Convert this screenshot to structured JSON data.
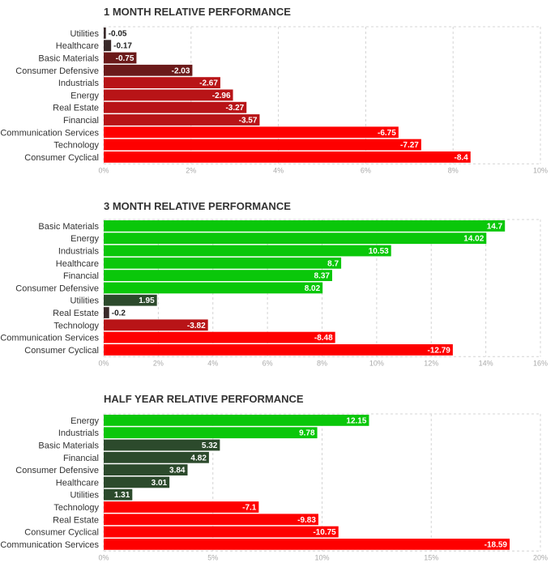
{
  "colors": {
    "neg_strong": "#fe0000",
    "neg_mid": "#b81417",
    "neg_weak": "#6b1a1a",
    "neg_faint": "#3a2a2a",
    "pos_strong": "#0ac70a",
    "pos_mid": "#1f7a1f",
    "pos_weak": "#2c4a2c"
  },
  "chart_data": [
    {
      "type": "bar",
      "orientation": "horizontal",
      "title": "1 MONTH RELATIVE PERFORMANCE",
      "categories": [
        "Utilities",
        "Healthcare",
        "Basic Materials",
        "Consumer Defensive",
        "Industrials",
        "Energy",
        "Real Estate",
        "Financial",
        "Communication Services",
        "Technology",
        "Consumer Cyclical"
      ],
      "values": [
        -0.05,
        -0.17,
        -0.75,
        -2.03,
        -2.67,
        -2.96,
        -3.27,
        -3.57,
        -6.75,
        -7.27,
        -8.4
      ],
      "value_labels": [
        "-0.05",
        "-0.17",
        "-0.75",
        "-2.03",
        "-2.67",
        "-2.96",
        "-3.27",
        "-3.57",
        "-6.75",
        "-7.27",
        "-8.4"
      ],
      "xlim": [
        0,
        10
      ],
      "xticks": [
        "0%",
        "2%",
        "4%",
        "6%",
        "8%",
        "10%"
      ],
      "grid": true,
      "bar_magnitude": "absolute value"
    },
    {
      "type": "bar",
      "orientation": "horizontal",
      "title": "3 MONTH RELATIVE PERFORMANCE",
      "categories": [
        "Basic Materials",
        "Energy",
        "Industrials",
        "Healthcare",
        "Financial",
        "Consumer Defensive",
        "Utilities",
        "Real Estate",
        "Technology",
        "Communication Services",
        "Consumer Cyclical"
      ],
      "values": [
        14.7,
        14.02,
        10.53,
        8.7,
        8.37,
        8.02,
        1.95,
        -0.2,
        -3.82,
        -8.48,
        -12.79
      ],
      "value_labels": [
        "14.7",
        "14.02",
        "10.53",
        "8.7",
        "8.37",
        "8.02",
        "1.95",
        "-0.2",
        "-3.82",
        "-8.48",
        "-12.79"
      ],
      "xlim": [
        0,
        16
      ],
      "xticks": [
        "0%",
        "2%",
        "4%",
        "6%",
        "8%",
        "10%",
        "12%",
        "14%",
        "16%"
      ],
      "grid": true,
      "bar_magnitude": "absolute value"
    },
    {
      "type": "bar",
      "orientation": "horizontal",
      "title": "HALF YEAR RELATIVE PERFORMANCE",
      "categories": [
        "Energy",
        "Industrials",
        "Basic Materials",
        "Financial",
        "Consumer Defensive",
        "Healthcare",
        "Utilities",
        "Technology",
        "Real Estate",
        "Consumer Cyclical",
        "Communication Services"
      ],
      "values": [
        12.15,
        9.78,
        5.32,
        4.82,
        3.84,
        3.01,
        1.31,
        -7.1,
        -9.83,
        -10.75,
        -18.59
      ],
      "value_labels": [
        "12.15",
        "9.78",
        "5.32",
        "4.82",
        "3.84",
        "3.01",
        "1.31",
        "-7.1",
        "-9.83",
        "-10.75",
        "-18.59"
      ],
      "xlim": [
        0,
        20
      ],
      "xticks": [
        "0%",
        "5%",
        "10%",
        "15%",
        "20%"
      ],
      "grid": true,
      "bar_magnitude": "absolute value"
    }
  ]
}
